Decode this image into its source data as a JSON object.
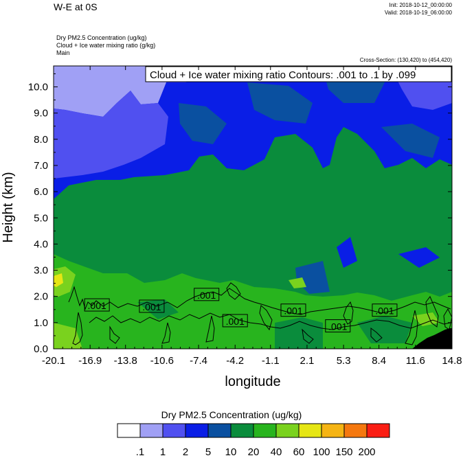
{
  "header": {
    "title": "W-E at 0S",
    "init": "Init: 2018-10-12_00:00:00",
    "valid": "Valid: 2018-10-19_06:00:00",
    "fields": [
      "Dry PM2.5 Concentration   (ug/kg)",
      "Cloud + Ice water mixing ratio   (g/kg)",
      "Main"
    ],
    "cross_section": "Cross-Section: (130,420) to (454,420)"
  },
  "chart_data": {
    "type": "heatmap",
    "title": "",
    "xlabel": "longitude",
    "ylabel": "Height (km)",
    "xlim": [
      -20.1,
      14.8
    ],
    "ylim": [
      0.0,
      10.8
    ],
    "x_ticks": [
      "-20.1",
      "-16.9",
      "-13.8",
      "-10.6",
      "-7.4",
      "-4.2",
      "-1.1",
      "2.1",
      "5.3",
      "8.4",
      "11.6",
      "14.8"
    ],
    "y_ticks": [
      "0.0",
      "1.0",
      "2.0",
      "3.0",
      "4.0",
      "5.0",
      "6.0",
      "7.0",
      "8.0",
      "9.0",
      "10.0"
    ],
    "contour_title": "Cloud + Ice water mixing ratio Contours: .001 to .1 by .099",
    "contour_labels": [
      {
        "label": ".001",
        "x": -16.3,
        "y": 1.65
      },
      {
        "label": ".001",
        "x": -11.5,
        "y": 1.6
      },
      {
        "label": ".001",
        "x": -6.7,
        "y": 2.05
      },
      {
        "label": ".001",
        "x": -4.2,
        "y": 1.05
      },
      {
        "label": ".001",
        "x": 0.9,
        "y": 1.45
      },
      {
        "label": ".001",
        "x": 4.8,
        "y": 0.85
      },
      {
        "label": ".001",
        "x": 8.9,
        "y": 1.45
      }
    ],
    "colorbar": {
      "title": "Dry PM2.5 Concentration  (ug/kg)",
      "labels": [
        ".1",
        "1",
        "2",
        "5",
        "10",
        "20",
        "40",
        "60",
        "100",
        "150",
        "200"
      ],
      "colors": [
        "#ffffff",
        "#a0a0f5",
        "#5050f0",
        "#0a1ee6",
        "#0a50a0",
        "#0a8c3c",
        "#28b41e",
        "#7ad21e",
        "#e6e614",
        "#f5b414",
        "#f5780f",
        "#fa1e14"
      ]
    },
    "field_colors": {
      "light_blue": "#a0a0f5",
      "medium_blue": "#5050f0",
      "blue": "#0a1ee6",
      "dark_blue": "#0a50a0",
      "green": "#0a8c3c",
      "light_green": "#28b41e",
      "lime": "#7ad21e",
      "yellow": "#e6e614",
      "terrain": "#000000"
    }
  }
}
